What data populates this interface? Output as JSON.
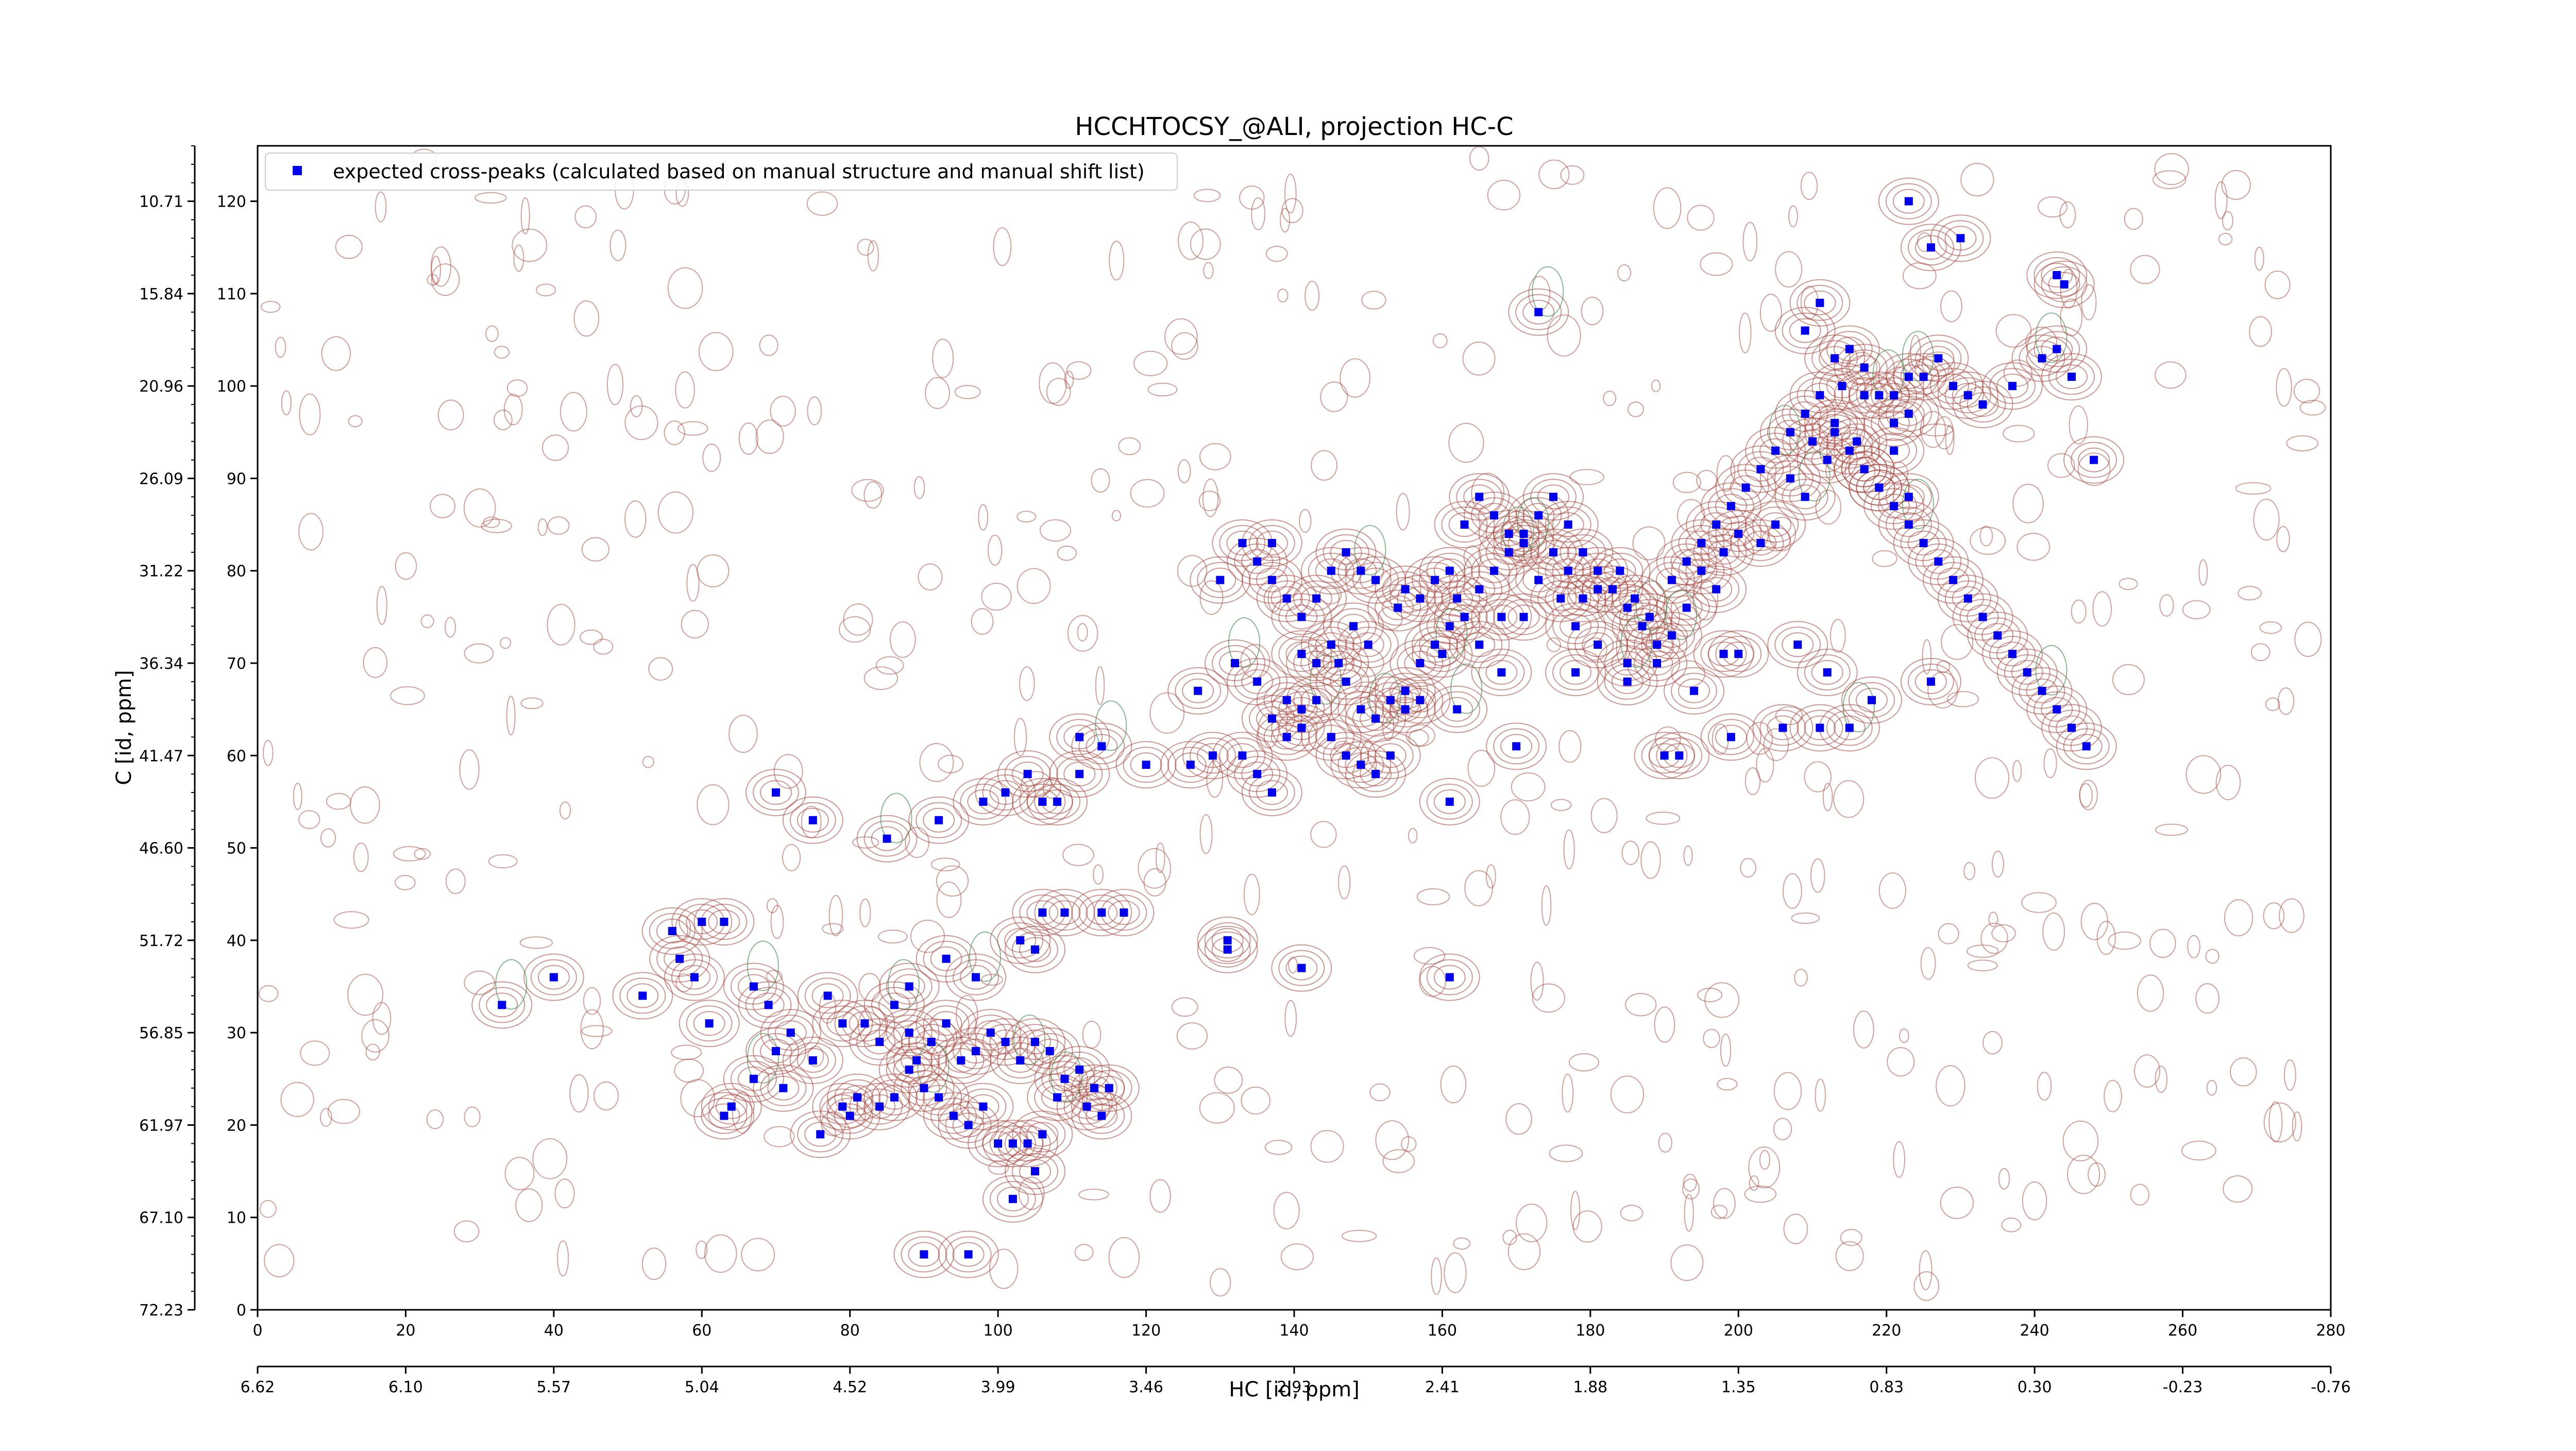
{
  "chart_data": {
    "type": "scatter",
    "title": "HCCHTOCSY_@ALI, projection HC-C",
    "xlabel": "HC [id, ppm]",
    "ylabel": "C [id, ppm]",
    "x_index_range": [
      0,
      280
    ],
    "y_index_range": [
      0,
      126
    ],
    "x_index_ticks": [
      "0",
      "20",
      "40",
      "60",
      "80",
      "100",
      "120",
      "140",
      "160",
      "180",
      "200",
      "220",
      "240",
      "260",
      "280"
    ],
    "x_ppm_ticks": [
      "6.62",
      "6.10",
      "5.57",
      "5.04",
      "4.52",
      "3.99",
      "3.46",
      "2.93",
      "2.41",
      "1.88",
      "1.35",
      "0.83",
      "0.30",
      "-0.23",
      "-0.76"
    ],
    "y_index_ticks": [
      "0",
      "10",
      "20",
      "30",
      "40",
      "50",
      "60",
      "70",
      "80",
      "90",
      "100",
      "110",
      "120"
    ],
    "y_ppm_ticks": [
      "72.23",
      "67.10",
      "61.97",
      "56.85",
      "51.72",
      "46.60",
      "41.47",
      "36.34",
      "31.22",
      "26.09",
      "20.96",
      "15.84",
      "10.71"
    ],
    "legend": {
      "label": "expected cross-peaks (calculated based on manual structure and manual shift list)",
      "placement": "top-left"
    },
    "colors": {
      "peaks": "#0000ee",
      "contour_positive": "#a5463c",
      "contour_negative": "#3d8a4f"
    },
    "series": [
      {
        "name": "expected cross-peaks (calculated based on manual structure and manual shift list)",
        "points": [
          [
            33,
            33
          ],
          [
            40,
            36
          ],
          [
            52,
            34
          ],
          [
            56,
            41
          ],
          [
            57,
            38
          ],
          [
            59,
            36
          ],
          [
            60,
            42
          ],
          [
            63,
            42
          ],
          [
            61,
            31
          ],
          [
            67,
            35
          ],
          [
            69,
            33
          ],
          [
            70,
            28
          ],
          [
            72,
            30
          ],
          [
            75,
            27
          ],
          [
            77,
            34
          ],
          [
            79,
            31
          ],
          [
            82,
            31
          ],
          [
            84,
            29
          ],
          [
            86,
            33
          ],
          [
            88,
            30
          ],
          [
            89,
            27
          ],
          [
            91,
            29
          ],
          [
            93,
            31
          ],
          [
            95,
            27
          ],
          [
            97,
            28
          ],
          [
            99,
            30
          ],
          [
            101,
            29
          ],
          [
            103,
            27
          ],
          [
            105,
            29
          ],
          [
            107,
            28
          ],
          [
            109,
            25
          ],
          [
            111,
            26
          ],
          [
            113,
            24
          ],
          [
            115,
            24
          ],
          [
            64,
            22
          ],
          [
            63,
            21
          ],
          [
            67,
            25
          ],
          [
            71,
            24
          ],
          [
            76,
            19
          ],
          [
            79,
            22
          ],
          [
            81,
            23
          ],
          [
            80,
            21
          ],
          [
            84,
            22
          ],
          [
            86,
            23
          ],
          [
            88,
            26
          ],
          [
            90,
            24
          ],
          [
            92,
            23
          ],
          [
            94,
            21
          ],
          [
            96,
            20
          ],
          [
            98,
            22
          ],
          [
            100,
            18
          ],
          [
            102,
            18
          ],
          [
            104,
            18
          ],
          [
            106,
            19
          ],
          [
            108,
            23
          ],
          [
            112,
            22
          ],
          [
            114,
            21
          ],
          [
            102,
            12
          ],
          [
            105,
            15
          ],
          [
            90,
            6
          ],
          [
            96,
            6
          ],
          [
            88,
            35
          ],
          [
            93,
            38
          ],
          [
            97,
            36
          ],
          [
            103,
            40
          ],
          [
            105,
            39
          ],
          [
            106,
            43
          ],
          [
            109,
            43
          ],
          [
            114,
            43
          ],
          [
            117,
            43
          ],
          [
            70,
            56
          ],
          [
            75,
            53
          ],
          [
            85,
            51
          ],
          [
            92,
            53
          ],
          [
            98,
            55
          ],
          [
            101,
            56
          ],
          [
            104,
            58
          ],
          [
            106,
            55
          ],
          [
            108,
            55
          ],
          [
            111,
            58
          ],
          [
            111,
            62
          ],
          [
            114,
            61
          ],
          [
            120,
            59
          ],
          [
            126,
            59
          ],
          [
            129,
            60
          ],
          [
            133,
            60
          ],
          [
            135,
            58
          ],
          [
            137,
            56
          ],
          [
            139,
            62
          ],
          [
            141,
            65
          ],
          [
            143,
            66
          ],
          [
            145,
            62
          ],
          [
            147,
            60
          ],
          [
            149,
            59
          ],
          [
            151,
            58
          ],
          [
            153,
            60
          ],
          [
            155,
            65
          ],
          [
            157,
            66
          ],
          [
            127,
            67
          ],
          [
            132,
            70
          ],
          [
            135,
            68
          ],
          [
            137,
            64
          ],
          [
            139,
            66
          ],
          [
            141,
            71
          ],
          [
            143,
            70
          ],
          [
            145,
            72
          ],
          [
            147,
            68
          ],
          [
            149,
            65
          ],
          [
            151,
            64
          ],
          [
            153,
            66
          ],
          [
            155,
            67
          ],
          [
            157,
            70
          ],
          [
            159,
            72
          ],
          [
            161,
            74
          ],
          [
            163,
            75
          ],
          [
            165,
            78
          ],
          [
            167,
            80
          ],
          [
            169,
            82
          ],
          [
            171,
            84
          ],
          [
            173,
            86
          ],
          [
            175,
            88
          ],
          [
            177,
            85
          ],
          [
            179,
            82
          ],
          [
            181,
            80
          ],
          [
            183,
            78
          ],
          [
            185,
            76
          ],
          [
            187,
            74
          ],
          [
            189,
            72
          ],
          [
            191,
            79
          ],
          [
            193,
            81
          ],
          [
            195,
            83
          ],
          [
            197,
            85
          ],
          [
            199,
            87
          ],
          [
            201,
            89
          ],
          [
            203,
            91
          ],
          [
            205,
            93
          ],
          [
            207,
            95
          ],
          [
            209,
            97
          ],
          [
            211,
            99
          ],
          [
            213,
            95
          ],
          [
            215,
            93
          ],
          [
            217,
            91
          ],
          [
            219,
            89
          ],
          [
            221,
            87
          ],
          [
            223,
            85
          ],
          [
            225,
            83
          ],
          [
            227,
            81
          ],
          [
            229,
            79
          ],
          [
            231,
            77
          ],
          [
            233,
            75
          ],
          [
            235,
            73
          ],
          [
            237,
            71
          ],
          [
            239,
            69
          ],
          [
            241,
            67
          ],
          [
            243,
            65
          ],
          [
            245,
            63
          ],
          [
            247,
            61
          ],
          [
            209,
            106
          ],
          [
            211,
            109
          ],
          [
            213,
            103
          ],
          [
            215,
            104
          ],
          [
            217,
            102
          ],
          [
            219,
            99
          ],
          [
            221,
            96
          ],
          [
            223,
            97
          ],
          [
            225,
            101
          ],
          [
            227,
            103
          ],
          [
            229,
            100
          ],
          [
            231,
            99
          ],
          [
            233,
            98
          ],
          [
            237,
            100
          ],
          [
            241,
            103
          ],
          [
            243,
            104
          ],
          [
            245,
            101
          ],
          [
            248,
            92
          ],
          [
            223,
            120
          ],
          [
            226,
            115
          ],
          [
            230,
            116
          ],
          [
            244,
            111
          ],
          [
            243,
            112
          ],
          [
            173,
            108
          ],
          [
            130,
            79
          ],
          [
            137,
            83
          ],
          [
            141,
            63
          ],
          [
            131,
            40
          ],
          [
            131,
            39
          ],
          [
            141,
            37
          ],
          [
            161,
            55
          ],
          [
            161,
            36
          ],
          [
            162,
            65
          ],
          [
            170,
            61
          ],
          [
            178,
            69
          ],
          [
            185,
            68
          ],
          [
            190,
            60
          ],
          [
            194,
            67
          ],
          [
            199,
            62
          ],
          [
            206,
            63
          ],
          [
            211,
            63
          ],
          [
            215,
            63
          ],
          [
            200,
            71
          ],
          [
            198,
            71
          ],
          [
            208,
            72
          ],
          [
            212,
            69
          ],
          [
            218,
            66
          ],
          [
            226,
            68
          ],
          [
            192,
            60
          ],
          [
            189,
            70
          ],
          [
            185,
            70
          ],
          [
            181,
            72
          ],
          [
            178,
            74
          ],
          [
            176,
            77
          ],
          [
            171,
            75
          ],
          [
            168,
            75
          ],
          [
            165,
            72
          ],
          [
            162,
            77
          ],
          [
            168,
            69
          ],
          [
            160,
            71
          ],
          [
            157,
            77
          ],
          [
            154,
            76
          ],
          [
            150,
            72
          ],
          [
            146,
            70
          ],
          [
            148,
            74
          ],
          [
            214,
            100
          ],
          [
            217,
            99
          ],
          [
            221,
            99
          ],
          [
            223,
            101
          ],
          [
            221,
            93
          ],
          [
            223,
            88
          ],
          [
            219,
            89
          ],
          [
            217,
            91
          ],
          [
            216,
            94
          ],
          [
            213,
            96
          ],
          [
            210,
            94
          ],
          [
            212,
            92
          ],
          [
            209,
            88
          ],
          [
            207,
            90
          ],
          [
            205,
            85
          ],
          [
            203,
            83
          ],
          [
            200,
            84
          ],
          [
            198,
            82
          ],
          [
            195,
            80
          ],
          [
            197,
            78
          ],
          [
            193,
            76
          ],
          [
            191,
            73
          ],
          [
            188,
            75
          ],
          [
            186,
            77
          ],
          [
            184,
            80
          ],
          [
            181,
            78
          ],
          [
            179,
            77
          ],
          [
            177,
            80
          ],
          [
            175,
            82
          ],
          [
            173,
            79
          ],
          [
            171,
            83
          ],
          [
            169,
            84
          ],
          [
            167,
            86
          ],
          [
            165,
            88
          ],
          [
            163,
            85
          ],
          [
            161,
            80
          ],
          [
            159,
            79
          ],
          [
            155,
            78
          ],
          [
            151,
            79
          ],
          [
            149,
            80
          ],
          [
            147,
            82
          ],
          [
            145,
            80
          ],
          [
            143,
            77
          ],
          [
            141,
            75
          ],
          [
            139,
            77
          ],
          [
            137,
            79
          ],
          [
            135,
            81
          ],
          [
            133,
            83
          ]
        ]
      }
    ]
  }
}
